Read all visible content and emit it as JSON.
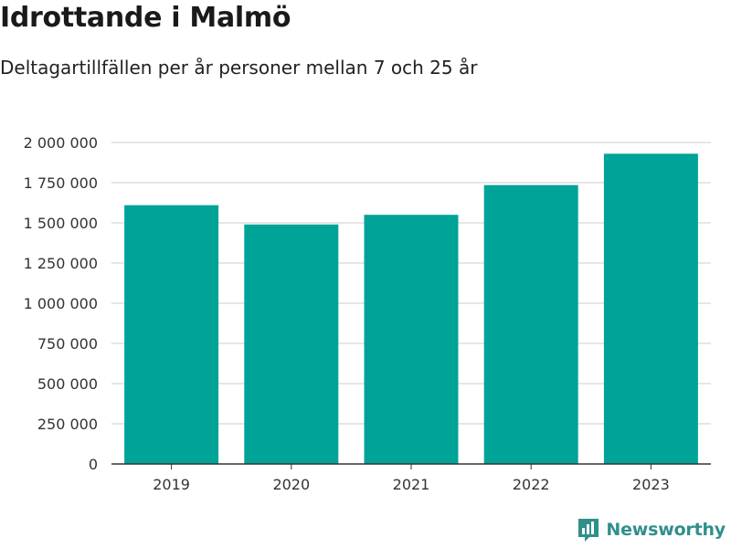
{
  "header": {
    "title": "Idrottande i Malmö",
    "subtitle": "Deltagartillfällen per år personer mellan 7 och 25 år"
  },
  "brand": {
    "name": "Newsworthy",
    "icon": "chart-logo-icon",
    "color": "#2f8f8a"
  },
  "chart_data": {
    "type": "bar",
    "categories": [
      "2019",
      "2020",
      "2021",
      "2022",
      "2023"
    ],
    "values": [
      1610000,
      1490000,
      1550000,
      1735000,
      1930000
    ],
    "ylim": [
      0,
      2000000
    ],
    "yticks": [
      0,
      250000,
      500000,
      750000,
      1000000,
      1250000,
      1500000,
      1750000,
      2000000
    ],
    "ytick_labels": [
      "0",
      "250 000",
      "500 000",
      "750 000",
      "1 000 000",
      "1 250 000",
      "1 500 000",
      "1 750 000",
      "2 000 000"
    ],
    "bar_color": "#00a398",
    "grid": true,
    "legend": "none"
  }
}
